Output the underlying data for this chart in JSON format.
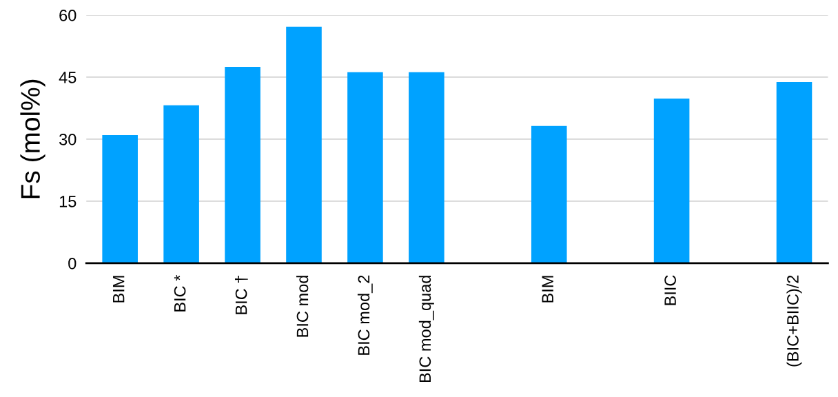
{
  "chart_data": {
    "type": "bar",
    "ylabel": "Fs (mol%)",
    "categories": [
      "BIM",
      "BIC *",
      "BIC †",
      "BIC mod",
      "BIC mod_2",
      "BIC mod_quad",
      null,
      "BIM",
      null,
      "BIIC",
      null,
      "(BIC+BIIC)/2"
    ],
    "values": [
      31,
      38.2,
      47.5,
      57.2,
      46.2,
      46.2,
      null,
      33.2,
      null,
      39.8,
      null,
      43.8
    ],
    "color": "#00a2ff",
    "ylim": [
      0,
      60
    ],
    "yticks": [
      0,
      15,
      30,
      45,
      60
    ],
    "grid": "y"
  }
}
